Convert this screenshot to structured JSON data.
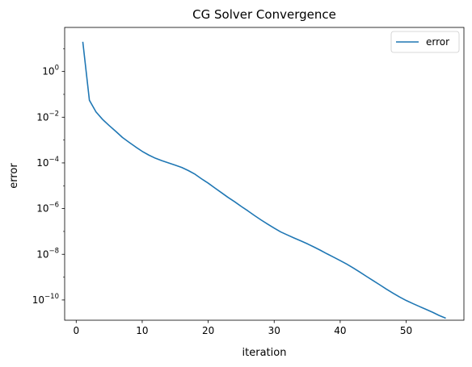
{
  "chart_data": {
    "type": "line",
    "title": "CG Solver Convergence",
    "xlabel": "iteration",
    "ylabel": "error",
    "xlim": [
      -1.75,
      58.75
    ],
    "ylim": [
      1.3e-11,
      85.0
    ],
    "yscale": "log",
    "grid": false,
    "legend": {
      "position": "top-right"
    },
    "x_ticks": [
      {
        "value": 0,
        "label": "0"
      },
      {
        "value": 10,
        "label": "10"
      },
      {
        "value": 20,
        "label": "20"
      },
      {
        "value": 30,
        "label": "30"
      },
      {
        "value": 40,
        "label": "40"
      },
      {
        "value": 50,
        "label": "50"
      }
    ],
    "y_ticks": [
      {
        "value": 1,
        "base": "10",
        "exp": "0"
      },
      {
        "value": 0.01,
        "base": "10",
        "exp": "−2"
      },
      {
        "value": 0.0001,
        "base": "10",
        "exp": "−4"
      },
      {
        "value": 1e-06,
        "base": "10",
        "exp": "−6"
      },
      {
        "value": 1e-08,
        "base": "10",
        "exp": "−8"
      },
      {
        "value": 1e-10,
        "base": "10",
        "exp": "−10"
      }
    ],
    "series": [
      {
        "name": "error",
        "color": "#1f77b4",
        "x": [
          1,
          2,
          3,
          4,
          5,
          6,
          7,
          8,
          9,
          10,
          11,
          12,
          13,
          14,
          15,
          16,
          17,
          18,
          19,
          20,
          21,
          22,
          23,
          24,
          25,
          26,
          27,
          28,
          29,
          30,
          31,
          32,
          33,
          34,
          35,
          36,
          37,
          38,
          39,
          40,
          41,
          42,
          43,
          44,
          45,
          46,
          47,
          48,
          49,
          50,
          51,
          52,
          53,
          54,
          55,
          56
        ],
        "y": [
          20,
          0.055,
          0.017,
          0.008,
          0.0043,
          0.0024,
          0.0013,
          0.0008,
          0.0005,
          0.00032,
          0.00022,
          0.00016,
          0.000125,
          0.0001,
          8e-05,
          6.3e-05,
          4.6e-05,
          3.2e-05,
          2e-05,
          1.3e-05,
          8e-06,
          5e-06,
          3.1e-06,
          2e-06,
          1.25e-06,
          8e-07,
          5e-07,
          3.2e-07,
          2.1e-07,
          1.4e-07,
          9.5e-08,
          7e-08,
          5.2e-08,
          3.9e-08,
          2.9e-08,
          2.1e-08,
          1.5e-08,
          1.05e-08,
          7.5e-09,
          5.3e-09,
          3.7e-09,
          2.5e-09,
          1.65e-09,
          1.07e-09,
          7e-10,
          4.6e-10,
          3e-10,
          2e-10,
          1.35e-10,
          9.5e-11,
          7e-11,
          5.2e-11,
          3.9e-11,
          2.9e-11,
          2.1e-11,
          1.6e-11
        ]
      }
    ]
  }
}
